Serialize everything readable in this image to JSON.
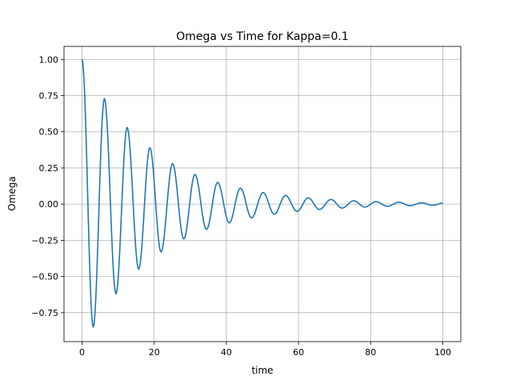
{
  "chart_data": {
    "type": "line",
    "title": "Omega vs Time for Kappa=0.1",
    "xlabel": "time",
    "ylabel": "Omega",
    "xlim": [
      -5,
      105
    ],
    "ylim": [
      -0.95,
      1.09
    ],
    "xticks": [
      0,
      20,
      40,
      60,
      80,
      100
    ],
    "xtick_labels": [
      "0",
      "20",
      "40",
      "60",
      "80",
      "100"
    ],
    "yticks": [
      -0.75,
      -0.5,
      -0.25,
      0.0,
      0.25,
      0.5,
      0.75,
      1.0
    ],
    "ytick_labels": [
      "−0.75",
      "−0.50",
      "−0.25",
      "0.00",
      "0.25",
      "0.50",
      "0.75",
      "1.00"
    ],
    "grid": true,
    "series": [
      {
        "color": "#1f77b4",
        "x": [
          0,
          3.1,
          6.2,
          9.4,
          12.5,
          15.7,
          18.8,
          21.9,
          25.1,
          28.2,
          31.3,
          34.5,
          37.6,
          40.8,
          43.9,
          47.0,
          50.2,
          53.3,
          56.4,
          59.6,
          62.7,
          65.8,
          69.0,
          72.1,
          75.3,
          78.4,
          81.5,
          84.7,
          87.8,
          90.9,
          94.1,
          97.2,
          100
        ],
        "y": [
          1.0,
          -0.85,
          0.73,
          -0.62,
          0.53,
          -0.45,
          0.39,
          -0.33,
          0.28,
          -0.24,
          0.205,
          -0.175,
          0.15,
          -0.13,
          0.11,
          -0.095,
          0.08,
          -0.07,
          0.06,
          -0.05,
          0.043,
          -0.037,
          0.032,
          -0.027,
          0.023,
          -0.02,
          0.017,
          -0.015,
          0.013,
          -0.011,
          0.009,
          -0.008,
          0.007
        ]
      }
    ]
  }
}
